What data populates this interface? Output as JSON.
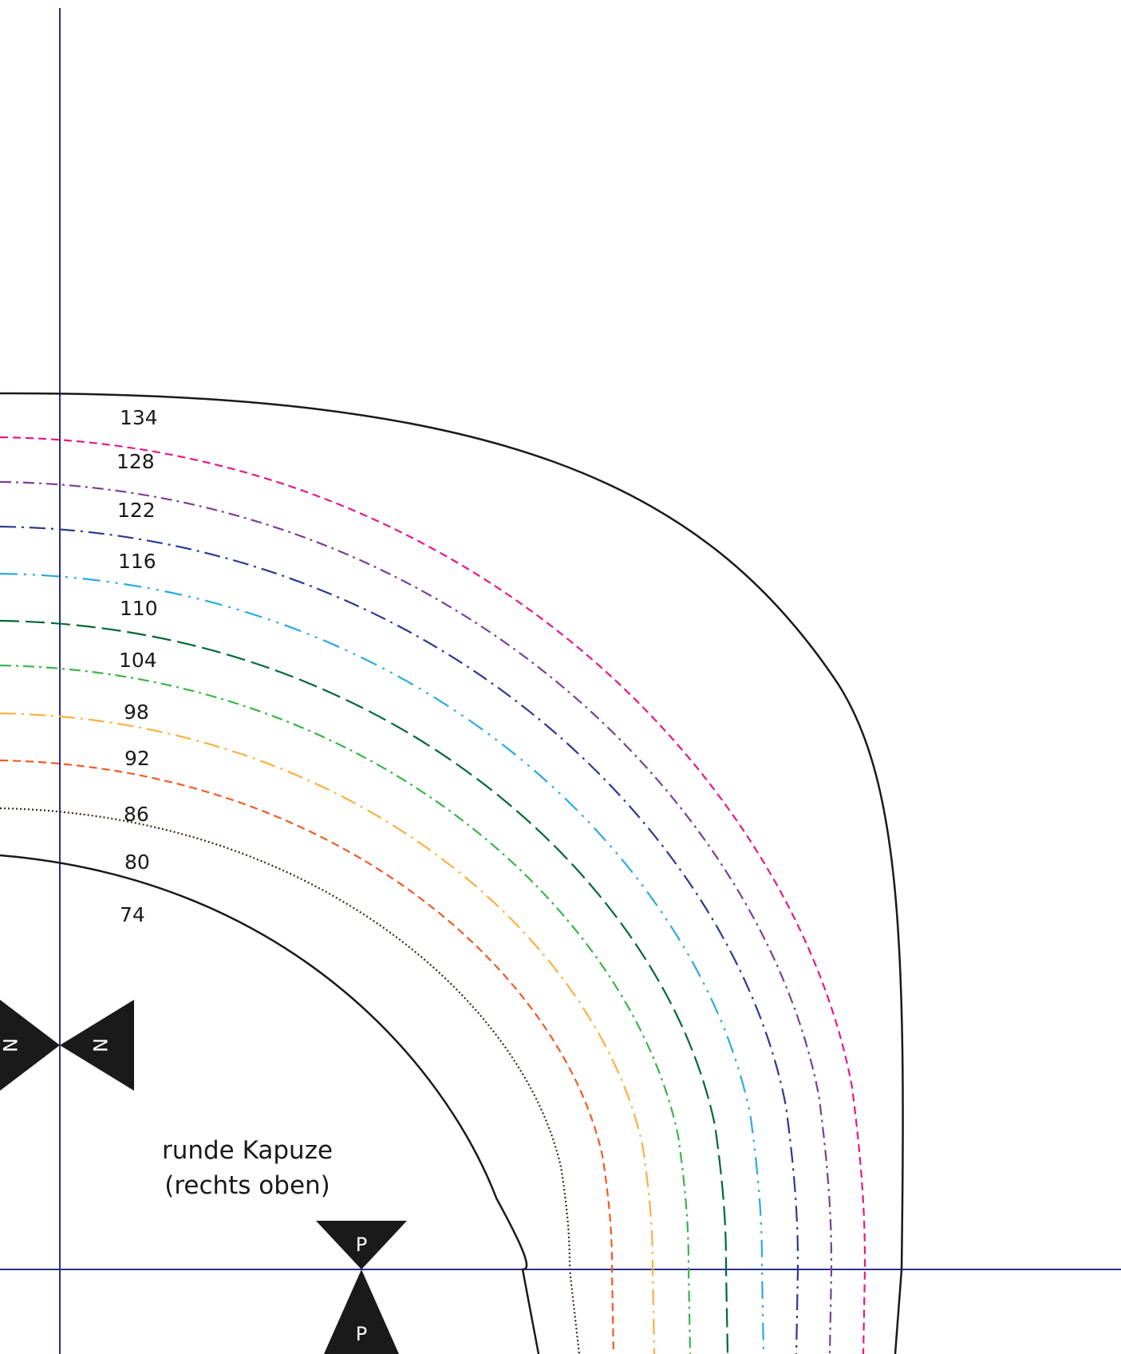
{
  "pattern": {
    "title_line1": "runde Kapuze",
    "title_line2": "(rechts oben)",
    "notch_side": "N",
    "notch_bottom": "P",
    "guide_color": "#2b2f8f",
    "notch_color": "#1a1a1a"
  },
  "sizes": [
    {
      "label": "134",
      "color": "#1a1a1a",
      "style": "solid"
    },
    {
      "label": "128",
      "color": "#e8178a",
      "style": "dash"
    },
    {
      "label": "122",
      "color": "#7b3f9a",
      "style": "dashdot"
    },
    {
      "label": "116",
      "color": "#2b3990",
      "style": "dashdot-long"
    },
    {
      "label": "110",
      "color": "#29abe2",
      "style": "dashdotdot"
    },
    {
      "label": "104",
      "color": "#006837",
      "style": "longdash"
    },
    {
      "label": "98",
      "color": "#39b54a",
      "style": "dashdot"
    },
    {
      "label": "92",
      "color": "#fbb040",
      "style": "dashdot-long"
    },
    {
      "label": "86",
      "color": "#f15a24",
      "style": "dash"
    },
    {
      "label": "80",
      "color": "#3b2314",
      "style": "dotted"
    },
    {
      "label": "74",
      "color": "#1a1a1a",
      "style": "solid"
    }
  ]
}
